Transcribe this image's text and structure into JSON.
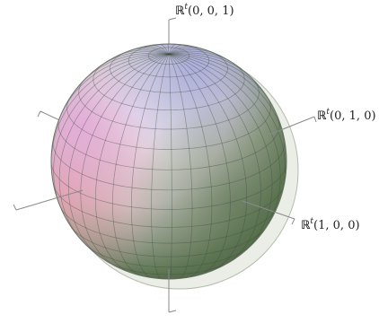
{
  "labels": {
    "z_axis": {
      "symbol": "ℝ",
      "superscript": "t",
      "coords": "(0, 0, 1)"
    },
    "y_axis": {
      "symbol": "ℝ",
      "superscript": "t",
      "coords": "(0, 1, 0)"
    },
    "x_axis": {
      "symbol": "ℝ",
      "superscript": "t",
      "coords": "(1, 0, 0)"
    }
  },
  "colors": {
    "axis": "#8a8a8a",
    "grid": "#3f4a3f",
    "sphere_highlight": "#f2f0f2",
    "sphere_magenta": "#e4a7dd",
    "sphere_pink": "#e7a3ad",
    "sphere_blue": "#a7a9df",
    "sphere_green": "#5d7552",
    "ghost_sphere": "#d9e0d3"
  }
}
